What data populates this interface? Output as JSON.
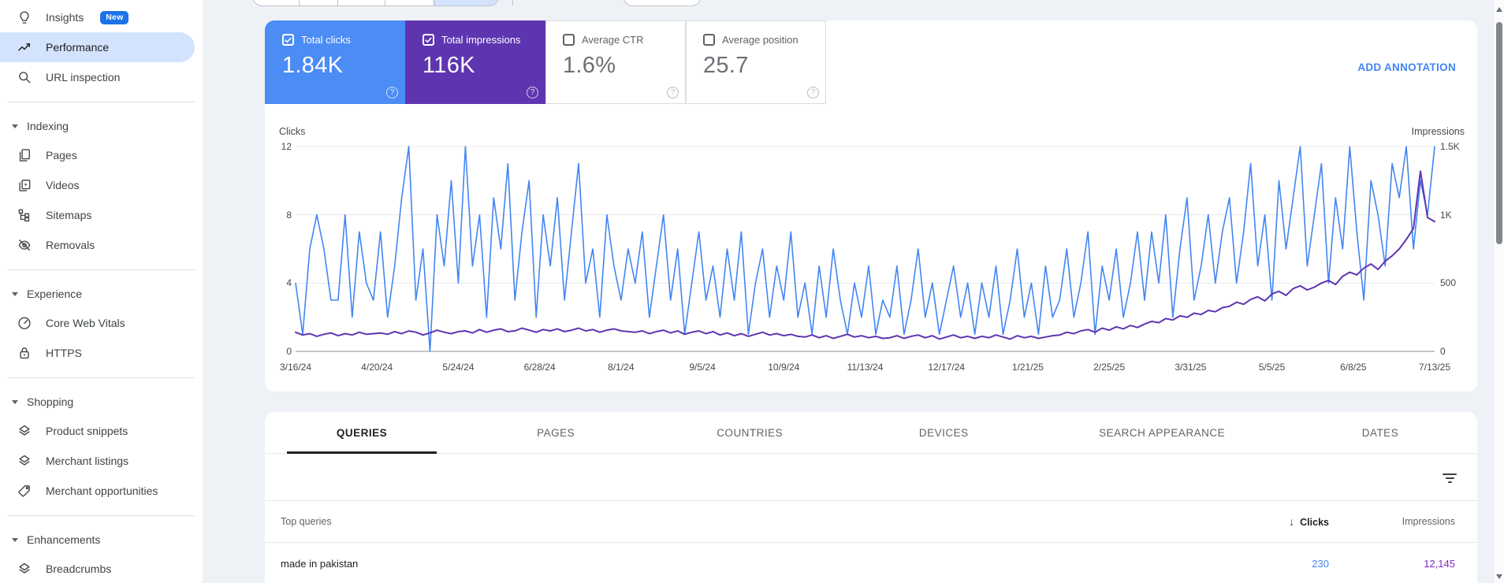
{
  "sidebar": {
    "entries": [
      {
        "type": "item",
        "icon": "lightbulb",
        "label": "Insights",
        "badge": "New"
      },
      {
        "type": "item",
        "icon": "trending",
        "label": "Performance",
        "selected": true
      },
      {
        "type": "item",
        "icon": "search",
        "label": "URL inspection"
      },
      {
        "type": "divider"
      },
      {
        "type": "section",
        "label": "Indexing"
      },
      {
        "type": "item",
        "icon": "pages",
        "label": "Pages"
      },
      {
        "type": "item",
        "icon": "videos",
        "label": "Videos"
      },
      {
        "type": "item",
        "icon": "sitemaps",
        "label": "Sitemaps"
      },
      {
        "type": "item",
        "icon": "removals",
        "label": "Removals"
      },
      {
        "type": "divider"
      },
      {
        "type": "section",
        "label": "Experience"
      },
      {
        "type": "item",
        "icon": "speed",
        "label": "Core Web Vitals"
      },
      {
        "type": "item",
        "icon": "lock",
        "label": "HTTPS"
      },
      {
        "type": "divider"
      },
      {
        "type": "section",
        "label": "Shopping"
      },
      {
        "type": "item",
        "icon": "layers",
        "label": "Product snippets"
      },
      {
        "type": "item",
        "icon": "layers",
        "label": "Merchant listings"
      },
      {
        "type": "item",
        "icon": "tag",
        "label": "Merchant opportunities"
      },
      {
        "type": "divider"
      },
      {
        "type": "section",
        "label": "Enhancements"
      },
      {
        "type": "item",
        "icon": "layers",
        "label": "Breadcrumbs"
      }
    ]
  },
  "metrics": {
    "add_annotation": "ADD ANNOTATION",
    "cards": [
      {
        "label": "Total clicks",
        "value": "1.84K",
        "checked": true,
        "color": "#4b8cf5"
      },
      {
        "label": "Total impressions",
        "value": "116K",
        "checked": true,
        "color": "#5e35b1"
      },
      {
        "label": "Average CTR",
        "value": "1.6%",
        "checked": false,
        "color": "#ffffff"
      },
      {
        "label": "Average position",
        "value": "25.7",
        "checked": false,
        "color": "#ffffff"
      }
    ]
  },
  "chart_data": {
    "type": "line",
    "grid": "horizontal",
    "x_tick_labels": [
      "3/16/24",
      "4/20/24",
      "5/24/24",
      "6/28/24",
      "8/1/24",
      "9/5/24",
      "10/9/24",
      "11/13/24",
      "12/17/24",
      "1/21/25",
      "2/25/25",
      "3/31/25",
      "5/5/25",
      "6/8/25",
      "7/13/25"
    ],
    "axes": {
      "left": {
        "title": "Clicks",
        "range": [
          0,
          12
        ],
        "ticks": [
          "0",
          "4",
          "8",
          "12"
        ]
      },
      "right": {
        "title": "Impressions",
        "range": [
          0,
          1500
        ],
        "ticks": [
          "0",
          "500",
          "1K",
          "1.5K"
        ]
      }
    },
    "series": [
      {
        "name": "Clicks",
        "axis": "left",
        "color": "#4285f4",
        "values": [
          4,
          1,
          6,
          8,
          6,
          3,
          3,
          8,
          2,
          7,
          4,
          3,
          7,
          2,
          5,
          9,
          12,
          3,
          6,
          0,
          8,
          5,
          10,
          4,
          12,
          5,
          8,
          2,
          9,
          6,
          11,
          3,
          7,
          10,
          2,
          8,
          5,
          9,
          3,
          7,
          11,
          4,
          6,
          2,
          8,
          5,
          3,
          6,
          4,
          7,
          2,
          5,
          8,
          3,
          6,
          1,
          4,
          7,
          3,
          5,
          2,
          6,
          3,
          7,
          1,
          4,
          6,
          2,
          5,
          3,
          7,
          2,
          4,
          1,
          5,
          2,
          6,
          3,
          1,
          4,
          2,
          5,
          1,
          3,
          2,
          5,
          1,
          3,
          6,
          2,
          4,
          1,
          3,
          5,
          2,
          4,
          1,
          4,
          2,
          5,
          1,
          3,
          6,
          2,
          4,
          1,
          5,
          2,
          3,
          6,
          2,
          4,
          7,
          1,
          5,
          3,
          6,
          2,
          4,
          7,
          3,
          7,
          4,
          8,
          2,
          6,
          9,
          3,
          5,
          8,
          4,
          7,
          9,
          4,
          7,
          11,
          5,
          8,
          3,
          10,
          6,
          9,
          12,
          5,
          8,
          11,
          4,
          9,
          6,
          12,
          7,
          3,
          10,
          8,
          5,
          11,
          9,
          12,
          6,
          10,
          8,
          12
        ]
      },
      {
        "name": "Impressions",
        "axis": "right",
        "color": "#5e35b1",
        "values": [
          140,
          120,
          130,
          110,
          125,
          135,
          115,
          130,
          120,
          140,
          125,
          130,
          135,
          125,
          145,
          130,
          150,
          140,
          120,
          135,
          155,
          140,
          130,
          145,
          150,
          135,
          160,
          140,
          155,
          165,
          145,
          150,
          170,
          155,
          140,
          160,
          150,
          165,
          145,
          155,
          170,
          150,
          160,
          140,
          155,
          165,
          150,
          145,
          140,
          150,
          130,
          145,
          155,
          135,
          150,
          125,
          140,
          150,
          130,
          145,
          120,
          135,
          115,
          130,
          110,
          125,
          140,
          120,
          130,
          115,
          125,
          110,
          105,
          120,
          100,
          115,
          95,
          110,
          125,
          105,
          115,
          100,
          110,
          95,
          100,
          115,
          95,
          110,
          120,
          100,
          115,
          90,
          105,
          120,
          100,
          110,
          95,
          110,
          100,
          120,
          105,
          90,
          115,
          100,
          110,
          95,
          105,
          115,
          120,
          140,
          130,
          150,
          160,
          140,
          170,
          155,
          180,
          165,
          190,
          175,
          200,
          220,
          210,
          240,
          230,
          260,
          250,
          280,
          270,
          300,
          290,
          320,
          330,
          360,
          345,
          380,
          400,
          370,
          420,
          440,
          410,
          460,
          480,
          450,
          470,
          500,
          520,
          490,
          550,
          580,
          560,
          610,
          640,
          600,
          660,
          700,
          750,
          820,
          900,
          1320,
          980,
          950
        ]
      }
    ]
  },
  "table": {
    "tabs": [
      "QUERIES",
      "PAGES",
      "COUNTRIES",
      "DEVICES",
      "SEARCH APPEARANCE",
      "DATES"
    ],
    "active_tab": "QUERIES",
    "header": {
      "query_col": "Top queries",
      "clicks_col": "Clicks",
      "impressions_col": "Impressions"
    },
    "rows": [
      {
        "query": "made in pakistan",
        "clicks": "230",
        "impressions": "12,145"
      }
    ],
    "colors": {
      "clicks_value": "#4285f4",
      "impressions_value": "#7c2dc4"
    }
  }
}
